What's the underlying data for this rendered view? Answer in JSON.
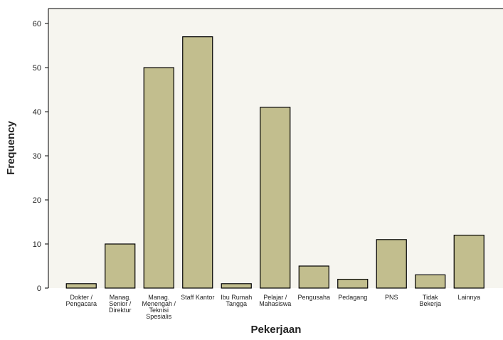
{
  "chart_data": {
    "type": "bar",
    "x_label": "Pekerjaan",
    "y_label": "Frequency",
    "categories": [
      "Dokter /\nPengacara",
      "Manag.\nSenior /\nDirektur",
      "Manag.\nMenengah /\nTeknisi\nSpesialis",
      "Staff Kantor",
      "Ibu Rumah\nTangga",
      "Pelajar /\nMahasiswa",
      "Pengusaha",
      "Pedagang",
      "PNS",
      "Tidak\nBekerja",
      "Lainnya"
    ],
    "values": [
      1,
      10,
      50,
      57,
      1,
      41,
      5,
      2,
      11,
      3,
      12
    ],
    "color": "#b8b47c",
    "ylim": [
      0,
      63.4
    ],
    "yticks": [
      0,
      10,
      20,
      30,
      40,
      50,
      60
    ]
  }
}
